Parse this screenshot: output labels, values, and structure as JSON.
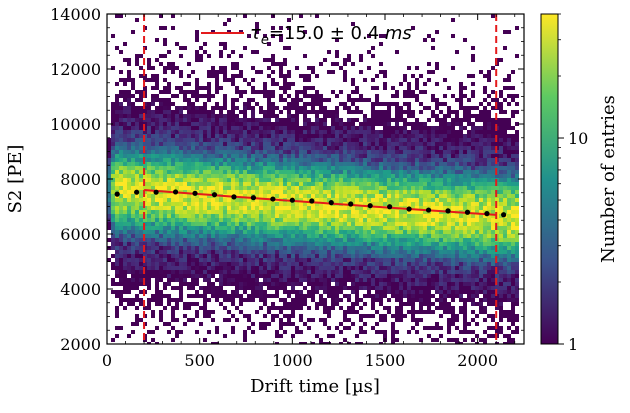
{
  "chart_data": {
    "type": "heatmap",
    "xlabel": "Drift time [µs]",
    "ylabel": "S2 [PE]",
    "colorbar_label": "Number of entries",
    "colorbar_scale": "log",
    "colorbar_range": [
      1,
      40
    ],
    "colorbar_ticks": [
      "1",
      "10"
    ],
    "colormap": "viridis",
    "xlim": [
      0,
      2250
    ],
    "ylim": [
      2000,
      14000
    ],
    "x_ticks": [
      "0",
      "500",
      "1000",
      "1500",
      "2000"
    ],
    "y_ticks": [
      "2000",
      "4000",
      "6000",
      "8000",
      "10000",
      "12000",
      "14000"
    ],
    "fit_window": [
      200,
      2100
    ],
    "fit_window_color": "#e41a1c",
    "fit": {
      "label_tau": "τ",
      "label_sub": "e",
      "label_value": "=15.0 ± 0.4 ",
      "label_unit": "ms",
      "color": "#e41a1c",
      "x_range": [
        200,
        2100
      ],
      "y_start": 7600,
      "lifetime_us": 15000
    },
    "profile_points": {
      "color": "#000000",
      "x": [
        55,
        160,
        265,
        370,
        475,
        580,
        685,
        790,
        895,
        1000,
        1105,
        1210,
        1315,
        1420,
        1525,
        1630,
        1735,
        1840,
        1945,
        2050,
        2140
      ],
      "y": [
        7450,
        7520,
        7520,
        7530,
        7480,
        7430,
        7350,
        7320,
        7270,
        7230,
        7200,
        7140,
        7090,
        7030,
        6990,
        6910,
        6870,
        6840,
        6790,
        6740,
        6700
      ]
    },
    "band": {
      "x_max": 2220,
      "core_sigma": 650,
      "halo_sigma": 2200
    }
  }
}
